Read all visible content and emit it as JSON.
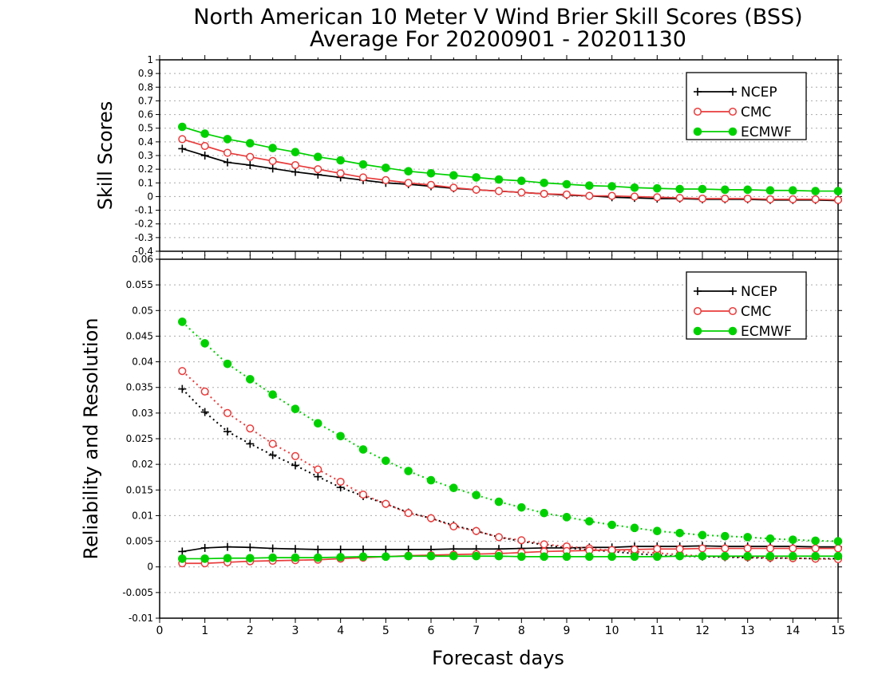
{
  "figure": {
    "title_line1": "North American 10 Meter V Wind Brier Skill Scores (BSS)",
    "title_line2": "Average For 20200901 - 20201130",
    "xlabel": "Forecast days"
  },
  "colors": {
    "NCEP": "#000000",
    "CMC": "#e83c3c",
    "ECMWF": "#00d000"
  },
  "chart_data": [
    {
      "type": "line",
      "ylabel": "Skill Scores",
      "xlim": [
        0,
        15
      ],
      "ylim": [
        -0.4,
        1
      ],
      "xticks": [
        0,
        1,
        2,
        3,
        4,
        5,
        6,
        7,
        8,
        9,
        10,
        11,
        12,
        13,
        14,
        15
      ],
      "yticks": [
        -0.4,
        -0.3,
        -0.2,
        -0.1,
        0,
        0.1,
        0.2,
        0.3,
        0.4,
        0.5,
        0.6,
        0.7,
        0.8,
        0.9,
        1
      ],
      "ytick_labels": [
        "-0.4",
        "-0.3",
        "-0.2",
        "-0.1",
        "0",
        "0.1",
        "0.2",
        "0.3",
        "0.4",
        "0.5",
        "0.6",
        "0.7",
        "0.8",
        "0.9",
        "1"
      ],
      "grid": true,
      "legend": {
        "position": "top-right",
        "entries": [
          "NCEP",
          "CMC",
          "ECMWF"
        ]
      },
      "x": [
        0.5,
        1,
        1.5,
        2,
        2.5,
        3,
        3.5,
        4,
        4.5,
        5,
        5.5,
        6,
        6.5,
        7,
        7.5,
        8,
        8.5,
        9,
        9.5,
        10,
        10.5,
        11,
        11.5,
        12,
        12.5,
        13,
        13.5,
        14,
        14.5,
        15
      ],
      "series": [
        {
          "name": "NCEP",
          "marker": "plus",
          "line": "solid",
          "values": [
            0.35,
            0.3,
            0.25,
            0.23,
            0.205,
            0.18,
            0.16,
            0.14,
            0.12,
            0.1,
            0.09,
            0.075,
            0.06,
            0.05,
            0.04,
            0.03,
            0.02,
            0.01,
            0.005,
            -0.005,
            -0.01,
            -0.015,
            -0.015,
            -0.02,
            -0.02,
            -0.02,
            -0.025,
            -0.025,
            -0.025,
            -0.03
          ]
        },
        {
          "name": "CMC",
          "marker": "circle-open",
          "line": "solid",
          "values": [
            0.42,
            0.37,
            0.32,
            0.29,
            0.26,
            0.23,
            0.2,
            0.17,
            0.14,
            0.12,
            0.1,
            0.085,
            0.065,
            0.05,
            0.04,
            0.03,
            0.02,
            0.015,
            0.005,
            0.005,
            0,
            -0.005,
            -0.01,
            -0.015,
            -0.015,
            -0.015,
            -0.02,
            -0.02,
            -0.02,
            -0.025
          ]
        },
        {
          "name": "ECMWF",
          "marker": "circle-filled",
          "line": "solid",
          "values": [
            0.51,
            0.46,
            0.42,
            0.39,
            0.355,
            0.325,
            0.29,
            0.265,
            0.235,
            0.21,
            0.185,
            0.17,
            0.155,
            0.14,
            0.125,
            0.115,
            0.1,
            0.09,
            0.08,
            0.075,
            0.065,
            0.06,
            0.055,
            0.055,
            0.05,
            0.05,
            0.045,
            0.045,
            0.04,
            0.04
          ]
        }
      ]
    },
    {
      "type": "line",
      "ylabel": "Reliability and Resolution",
      "xlim": [
        0,
        15
      ],
      "ylim": [
        -0.01,
        0.06
      ],
      "xticks": [
        0,
        1,
        2,
        3,
        4,
        5,
        6,
        7,
        8,
        9,
        10,
        11,
        12,
        13,
        14,
        15
      ],
      "yticks": [
        -0.01,
        -0.005,
        0,
        0.005,
        0.01,
        0.015,
        0.02,
        0.025,
        0.03,
        0.035,
        0.04,
        0.045,
        0.05,
        0.055,
        0.06
      ],
      "ytick_labels": [
        "-0.01",
        "-0.005",
        "0",
        "0.005",
        "0.01",
        "0.015",
        "0.02",
        "0.025",
        "0.03",
        "0.035",
        "0.04",
        "0.045",
        "0.05",
        "0.055",
        "0.06"
      ],
      "grid": true,
      "legend": {
        "position": "top-right",
        "entries": [
          "NCEP",
          "CMC",
          "ECMWF"
        ]
      },
      "x": [
        0.5,
        1,
        1.5,
        2,
        2.5,
        3,
        3.5,
        4,
        4.5,
        5,
        5.5,
        6,
        6.5,
        7,
        7.5,
        8,
        8.5,
        9,
        9.5,
        10,
        10.5,
        11,
        11.5,
        12,
        12.5,
        13,
        13.5,
        14,
        14.5,
        15
      ],
      "series": [
        {
          "name": "NCEP",
          "metric": "resolution",
          "marker": "plus",
          "line": "dotted",
          "values": [
            0.0347,
            0.0302,
            0.0264,
            0.024,
            0.0218,
            0.0198,
            0.0176,
            0.0155,
            0.0138,
            0.0123,
            0.0106,
            0.0095,
            0.0081,
            0.007,
            0.0058,
            0.005,
            0.0043,
            0.0037,
            0.0033,
            0.003,
            0.0026,
            0.0023,
            0.0021,
            0.002,
            0.0019,
            0.0018,
            0.0017,
            0.0017,
            0.0016,
            0.0016
          ]
        },
        {
          "name": "NCEP",
          "metric": "reliability",
          "marker": "plus",
          "line": "solid",
          "values": [
            0.003,
            0.0037,
            0.0039,
            0.0038,
            0.0036,
            0.0035,
            0.0034,
            0.0034,
            0.0034,
            0.0034,
            0.0034,
            0.0034,
            0.0035,
            0.0035,
            0.0035,
            0.0036,
            0.0037,
            0.0037,
            0.0038,
            0.0038,
            0.004,
            0.004,
            0.004,
            0.0041,
            0.004,
            0.004,
            0.004,
            0.004,
            0.0039,
            0.0039
          ]
        },
        {
          "name": "CMC",
          "metric": "resolution",
          "marker": "circle-open",
          "line": "dotted",
          "values": [
            0.0382,
            0.0342,
            0.03,
            0.027,
            0.024,
            0.0216,
            0.019,
            0.0166,
            0.0141,
            0.0123,
            0.0105,
            0.0095,
            0.0079,
            0.007,
            0.0058,
            0.0052,
            0.0044,
            0.004,
            0.0036,
            0.0032,
            0.003,
            0.0027,
            0.0024,
            0.0021,
            0.002,
            0.0019,
            0.0018,
            0.0017,
            0.0016,
            0.0015
          ]
        },
        {
          "name": "CMC",
          "metric": "reliability",
          "marker": "circle-open",
          "line": "solid",
          "values": [
            0.0007,
            0.0007,
            0.0009,
            0.0011,
            0.0012,
            0.0013,
            0.0014,
            0.0016,
            0.0018,
            0.002,
            0.0022,
            0.0023,
            0.0024,
            0.0025,
            0.0026,
            0.0028,
            0.003,
            0.0031,
            0.0032,
            0.0033,
            0.0034,
            0.0035,
            0.0035,
            0.0036,
            0.0036,
            0.0036,
            0.0036,
            0.0036,
            0.0036,
            0.0036
          ]
        },
        {
          "name": "ECMWF",
          "metric": "resolution",
          "marker": "circle-filled",
          "line": "dotted",
          "values": [
            0.0478,
            0.0436,
            0.0396,
            0.0366,
            0.0336,
            0.0308,
            0.028,
            0.0255,
            0.0229,
            0.0207,
            0.0187,
            0.0169,
            0.0154,
            0.014,
            0.0127,
            0.0116,
            0.0105,
            0.0097,
            0.0089,
            0.0082,
            0.0076,
            0.007,
            0.0066,
            0.0062,
            0.006,
            0.0058,
            0.0055,
            0.0053,
            0.0051,
            0.005
          ]
        },
        {
          "name": "ECMWF",
          "metric": "reliability",
          "marker": "circle-filled",
          "line": "solid",
          "values": [
            0.0016,
            0.0016,
            0.0017,
            0.0017,
            0.0018,
            0.0018,
            0.0018,
            0.0019,
            0.002,
            0.002,
            0.0021,
            0.0021,
            0.0021,
            0.0021,
            0.0021,
            0.002,
            0.002,
            0.002,
            0.002,
            0.002,
            0.002,
            0.002,
            0.0021,
            0.0021,
            0.0021,
            0.0021,
            0.0021,
            0.0021,
            0.0021,
            0.0021
          ]
        }
      ]
    }
  ]
}
